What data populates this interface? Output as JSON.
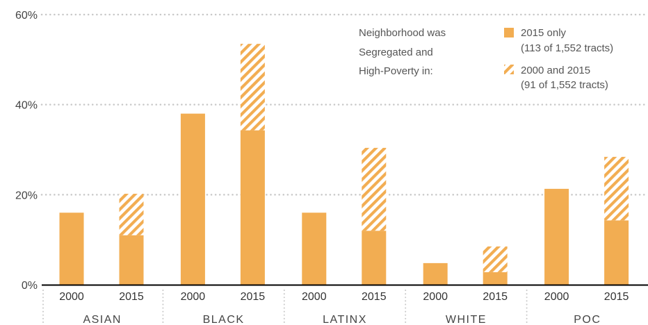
{
  "chart_data": {
    "type": "bar",
    "stacked": true,
    "title": "",
    "xlabel": "",
    "ylabel": "",
    "ylim": [
      0,
      60
    ],
    "yticks": [
      "0%",
      "20%",
      "40%",
      "60%"
    ],
    "grid": true,
    "legend_position": "top-right",
    "groups": [
      "ASIAN",
      "BLACK",
      "LATINX",
      "WHITE",
      "POC"
    ],
    "years": [
      "2000",
      "2015"
    ],
    "legend_intro": [
      "Neighborhood was",
      "Segregated and",
      "High-Poverty in:"
    ],
    "series": [
      {
        "name": "2015 only",
        "note": "(113 of 1,552 tracts)",
        "pattern": "solid",
        "values": [
          16,
          11,
          38,
          34.3,
          16,
          12,
          4.8,
          2.8,
          21.3,
          14.3
        ]
      },
      {
        "name": "2000 and 2015",
        "note": "(91 of 1,552 tracts)",
        "pattern": "hatched",
        "values": [
          0,
          9.2,
          0,
          19.2,
          0,
          18.4,
          0,
          5.7,
          0,
          14.1
        ]
      }
    ],
    "colors": {
      "bar": "#f2ad52",
      "grid": "#c8c8c8",
      "axis": "#000000",
      "text": "#444444"
    }
  }
}
